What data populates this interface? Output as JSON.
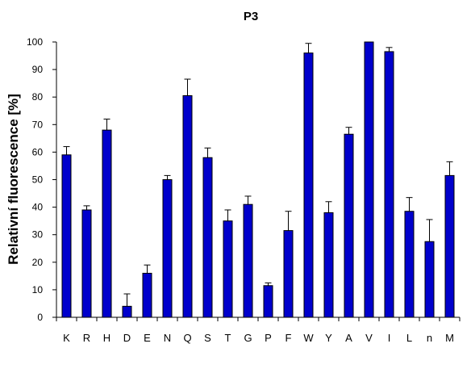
{
  "chart_data": {
    "type": "bar",
    "title": "P3",
    "xlabel": "",
    "ylabel": "Relativní fluorescence [%]",
    "categories": [
      "K",
      "R",
      "H",
      "D",
      "E",
      "N",
      "Q",
      "S",
      "T",
      "G",
      "P",
      "F",
      "W",
      "Y",
      "A",
      "V",
      "I",
      "L",
      "n",
      "M"
    ],
    "values": [
      59,
      39,
      68,
      4,
      16,
      50,
      80.5,
      58,
      35,
      41,
      11.5,
      31.5,
      96,
      38,
      66.5,
      100,
      96.5,
      38.5,
      27.5,
      51.5
    ],
    "errors": [
      3,
      1.5,
      4,
      4.5,
      3,
      1.5,
      6,
      3.5,
      4,
      3,
      1,
      7,
      3.5,
      4,
      2.5,
      0.5,
      1.5,
      5,
      8,
      5
    ],
    "ylim": [
      0,
      100
    ],
    "yticks": [
      0,
      10,
      20,
      30,
      40,
      50,
      60,
      70,
      80,
      90,
      100
    ],
    "bar_color": "#0000cc",
    "grid": false,
    "legend": "none"
  }
}
